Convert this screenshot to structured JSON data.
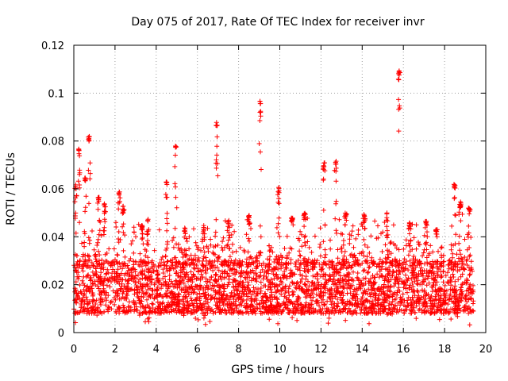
{
  "chart_data": {
    "type": "scatter",
    "title": "Day 075 of 2017, Rate Of TEC Index for receiver invr",
    "xlabel": "GPS time / hours",
    "ylabel": "ROTI / TECUs",
    "xlim": [
      0,
      20
    ],
    "ylim": [
      0,
      0.12
    ],
    "x_ticks": [
      0,
      2,
      4,
      6,
      8,
      10,
      12,
      14,
      16,
      18,
      20
    ],
    "x_tick_labels": [
      "0",
      "2",
      "4",
      "6",
      "8",
      "10",
      "12",
      "14",
      "16",
      "18",
      "20"
    ],
    "y_ticks": [
      0,
      0.02,
      0.04,
      0.06,
      0.08,
      0.1,
      0.12
    ],
    "y_tick_labels": [
      "0",
      "0.02",
      "0.04",
      "0.06",
      "0.08",
      "0.1",
      "0.12"
    ],
    "grid": true,
    "marker": "+",
    "color": "#ff0000",
    "data_time_range_hours": [
      0,
      19.4
    ],
    "baseline_band": [
      0.008,
      0.03
    ],
    "peaks": [
      {
        "x": 0.1,
        "y": 0.062
      },
      {
        "x": 0.25,
        "y": 0.077
      },
      {
        "x": 0.55,
        "y": 0.065
      },
      {
        "x": 0.75,
        "y": 0.082
      },
      {
        "x": 1.2,
        "y": 0.057
      },
      {
        "x": 1.5,
        "y": 0.054
      },
      {
        "x": 2.2,
        "y": 0.059
      },
      {
        "x": 2.4,
        "y": 0.053
      },
      {
        "x": 3.3,
        "y": 0.045
      },
      {
        "x": 3.6,
        "y": 0.048
      },
      {
        "x": 4.5,
        "y": 0.064
      },
      {
        "x": 4.95,
        "y": 0.078
      },
      {
        "x": 5.4,
        "y": 0.044
      },
      {
        "x": 6.3,
        "y": 0.045
      },
      {
        "x": 6.95,
        "y": 0.088
      },
      {
        "x": 7.5,
        "y": 0.047
      },
      {
        "x": 8.5,
        "y": 0.049
      },
      {
        "x": 9.05,
        "y": 0.097
      },
      {
        "x": 9.95,
        "y": 0.061
      },
      {
        "x": 10.6,
        "y": 0.048
      },
      {
        "x": 11.2,
        "y": 0.05
      },
      {
        "x": 12.15,
        "y": 0.071
      },
      {
        "x": 12.7,
        "y": 0.072
      },
      {
        "x": 13.2,
        "y": 0.05
      },
      {
        "x": 14.1,
        "y": 0.05
      },
      {
        "x": 15.2,
        "y": 0.05
      },
      {
        "x": 15.8,
        "y": 0.11
      },
      {
        "x": 16.3,
        "y": 0.046
      },
      {
        "x": 17.1,
        "y": 0.047
      },
      {
        "x": 17.6,
        "y": 0.043
      },
      {
        "x": 18.5,
        "y": 0.062
      },
      {
        "x": 18.75,
        "y": 0.055
      },
      {
        "x": 19.2,
        "y": 0.052
      }
    ]
  }
}
